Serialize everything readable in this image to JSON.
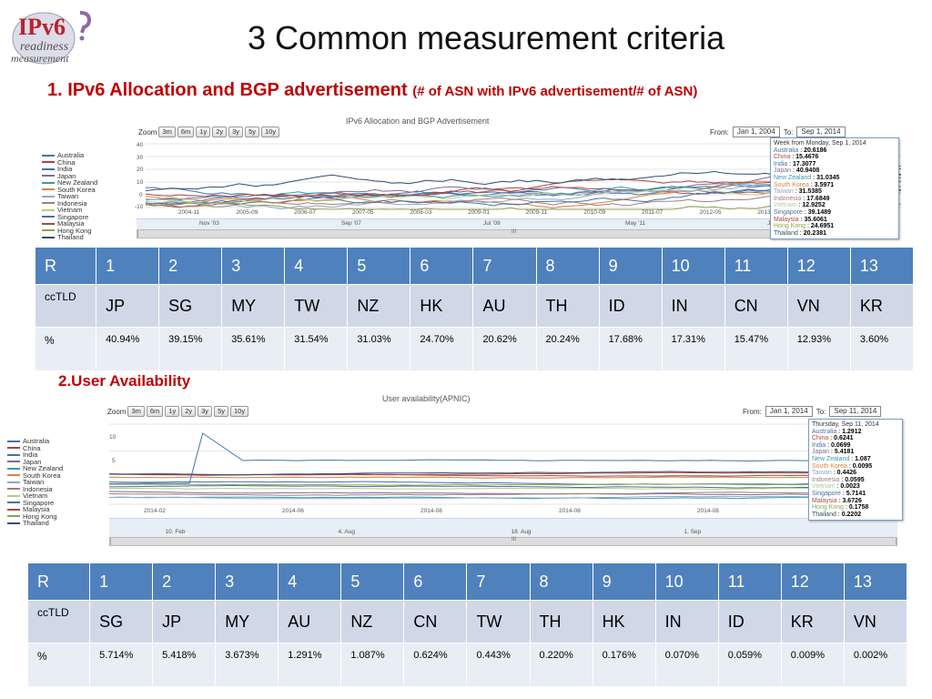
{
  "logo": {
    "line1": "IPv6",
    "line2": "readiness",
    "line3": "measurement"
  },
  "slide_title": "3 Common measurement criteria",
  "section1": {
    "heading": "1. IPv6 Allocation and BGP advertisement",
    "subheading": "(# of ASN with IPv6 advertisement/# of ASN)"
  },
  "chart1": {
    "title": "IPv6 Allocation and BGP Advertisement",
    "zoom_label": "Zoom",
    "zoom_buttons": [
      "3m",
      "6m",
      "1y",
      "2y",
      "3y",
      "5y",
      "10y"
    ],
    "from_label": "From:",
    "from_value": "Jan 1, 2004",
    "to_label": "To:",
    "to_value": "Sep 1, 2014",
    "y_ticks": [
      "40",
      "30",
      "20",
      "10",
      "0",
      "-10"
    ],
    "x_ticks": [
      "2004-11",
      "2005-09",
      "2006-07",
      "2007-05",
      "2008-03",
      "2009-01",
      "2009-11",
      "2010-09",
      "2011-07",
      "2012-05",
      "2013-03"
    ],
    "navigator_labels": [
      "Nov '03",
      "Sep '07",
      "Jul '09",
      "May '11",
      "Jan '13"
    ],
    "scroll_marker": "III",
    "legend": [
      {
        "name": "Australia",
        "color": "#4572a7"
      },
      {
        "name": "China",
        "color": "#aa4643"
      },
      {
        "name": "India",
        "color": "#4a6fa5"
      },
      {
        "name": "Japan",
        "color": "#80699b"
      },
      {
        "name": "New Zealand",
        "color": "#3d96ae"
      },
      {
        "name": "South Korea",
        "color": "#db843d"
      },
      {
        "name": "Taiwan",
        "color": "#92a8cd"
      },
      {
        "name": "Indonesia",
        "color": "#a47d7c"
      },
      {
        "name": "Vietnam",
        "color": "#b5ca92"
      },
      {
        "name": "Singapore",
        "color": "#4572a7"
      },
      {
        "name": "Malaysia",
        "color": "#aa4643"
      },
      {
        "name": "Hong Kong",
        "color": "#89a54e"
      },
      {
        "name": "Thailand",
        "color": "#2f4f6f"
      }
    ],
    "tooltip": {
      "title": "Week from Monday, Sep 1, 2014",
      "rows": [
        {
          "label": "Australia",
          "value": "20.6186",
          "color": "#4572a7"
        },
        {
          "label": "China",
          "value": "15.4676",
          "color": "#aa4643"
        },
        {
          "label": "India",
          "value": "17.3077",
          "color": "#4a6fa5"
        },
        {
          "label": "Japan",
          "value": "40.9408",
          "color": "#80699b"
        },
        {
          "label": "New Zealand",
          "value": "31.0345",
          "color": "#3d96ae"
        },
        {
          "label": "South Korea",
          "value": "3.5971",
          "color": "#db843d"
        },
        {
          "label": "Taiwan",
          "value": "31.5385",
          "color": "#92a8cd"
        },
        {
          "label": "Indonesia",
          "value": "17.6849",
          "color": "#a47d7c"
        },
        {
          "label": "Vietnam",
          "value": "12.9252",
          "color": "#b5ca92"
        },
        {
          "label": "Singapore",
          "value": "39.1489",
          "color": "#4572a7"
        },
        {
          "label": "Malaysia",
          "value": "35.6061",
          "color": "#aa4643"
        },
        {
          "label": "Hong Kong",
          "value": "24.6951",
          "color": "#89a54e"
        },
        {
          "label": "Thailand",
          "value": "20.2381",
          "color": "#2f4f6f"
        }
      ]
    }
  },
  "table1": {
    "rank_label": "R",
    "cctld_label": "ccTLD",
    "pct_label": "%",
    "ranks": [
      "1",
      "2",
      "3",
      "4",
      "5",
      "6",
      "7",
      "8",
      "9",
      "10",
      "11",
      "12",
      "13"
    ],
    "cctlds": [
      "JP",
      "SG",
      "MY",
      "TW",
      "NZ",
      "HK",
      "AU",
      "TH",
      "ID",
      "IN",
      "CN",
      "VN",
      "KR"
    ],
    "percents": [
      "40.94%",
      "39.15%",
      "35.61%",
      "31.54%",
      "31.03%",
      "24.70%",
      "20.62%",
      "20.24%",
      "17.68%",
      "17.31%",
      "15.47%",
      "12.93%",
      "3.60%"
    ]
  },
  "section2": {
    "heading": "2.User Availability"
  },
  "chart2": {
    "title": "User availability(APNIC)",
    "zoom_label": "Zoom",
    "zoom_buttons": [
      "3m",
      "6m",
      "1y",
      "2y",
      "3y",
      "5y",
      "10y"
    ],
    "from_label": "From:",
    "from_value": "Jan 1, 2014",
    "to_label": "To:",
    "to_value": "Sep 11, 2014",
    "y_ticks": [
      "10",
      "5"
    ],
    "x_ticks": [
      "2014-02",
      "2014-06",
      "2014-08",
      "2014-08",
      "2014-08"
    ],
    "navigator_labels": [
      "10. Feb",
      "4. Aug",
      "18. Aug",
      "1. Sep"
    ],
    "scroll_marker": "III",
    "legend": [
      {
        "name": "Australia",
        "color": "#4572a7"
      },
      {
        "name": "China",
        "color": "#aa4643"
      },
      {
        "name": "India",
        "color": "#4a6fa5"
      },
      {
        "name": "Japan",
        "color": "#80699b"
      },
      {
        "name": "New Zealand",
        "color": "#3d96ae"
      },
      {
        "name": "South Korea",
        "color": "#db843d"
      },
      {
        "name": "Taiwan",
        "color": "#92a8cd"
      },
      {
        "name": "Indonesia",
        "color": "#a47d7c"
      },
      {
        "name": "Vietnam",
        "color": "#b5ca92"
      },
      {
        "name": "Singapore",
        "color": "#4572a7"
      },
      {
        "name": "Malaysia",
        "color": "#aa4643"
      },
      {
        "name": "Hong Kong",
        "color": "#89a54e"
      },
      {
        "name": "Thailand",
        "color": "#2f4f6f"
      }
    ],
    "tooltip": {
      "title": "Thursday, Sep 11, 2014",
      "rows": [
        {
          "label": "Australia",
          "value": "1.2912",
          "color": "#4572a7"
        },
        {
          "label": "China",
          "value": "0.6241",
          "color": "#aa4643"
        },
        {
          "label": "India",
          "value": "0.0699",
          "color": "#4a6fa5"
        },
        {
          "label": "Japan",
          "value": "5.4181",
          "color": "#80699b"
        },
        {
          "label": "New Zealand",
          "value": "1.087",
          "color": "#3d96ae"
        },
        {
          "label": "South Korea",
          "value": "0.0095",
          "color": "#db843d"
        },
        {
          "label": "Taiwan",
          "value": "0.4426",
          "color": "#92a8cd"
        },
        {
          "label": "Indonesia",
          "value": "0.0595",
          "color": "#a47d7c"
        },
        {
          "label": "Vietnam",
          "value": "0.0023",
          "color": "#b5ca92"
        },
        {
          "label": "Singapore",
          "value": "5.7141",
          "color": "#4572a7"
        },
        {
          "label": "Malaysia",
          "value": "3.6726",
          "color": "#aa4643"
        },
        {
          "label": "Hong Kong",
          "value": "0.1758",
          "color": "#89a54e"
        },
        {
          "label": "Thailand",
          "value": "0.2202",
          "color": "#2f4f6f"
        }
      ]
    }
  },
  "table2": {
    "rank_label": "R",
    "cctld_label": "ccTLD",
    "pct_label": "%",
    "ranks": [
      "1",
      "2",
      "3",
      "4",
      "5",
      "6",
      "7",
      "8",
      "9",
      "10",
      "11",
      "12",
      "13"
    ],
    "cctlds": [
      "SG",
      "JP",
      "MY",
      "AU",
      "NZ",
      "CN",
      "TW",
      "TH",
      "HK",
      "IN",
      "ID",
      "KR",
      "VN"
    ],
    "percents": [
      "5.714%",
      "5.418%",
      "3.673%",
      "1.291%",
      "1.087%",
      "0.624%",
      "0.443%",
      "0.220%",
      "0.176%",
      "0.070%",
      "0.059%",
      "0.009%",
      "0.002%"
    ]
  }
}
